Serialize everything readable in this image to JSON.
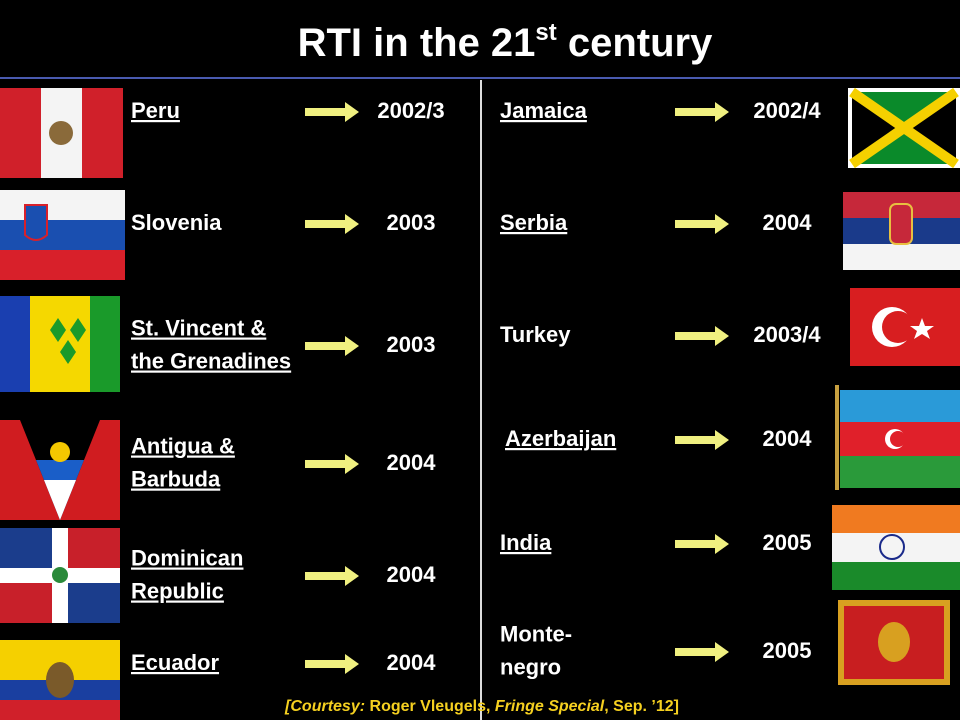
{
  "title": {
    "main": "RTI in the 21",
    "sup": "st",
    "rest": " century"
  },
  "left": [
    {
      "name": [
        "Peru"
      ],
      "year": "2002/3",
      "underline": true
    },
    {
      "name": [
        "Slovenia"
      ],
      "year": "2003",
      "underline": false
    },
    {
      "name": [
        "St. Vincent &",
        "the Grenadines"
      ],
      "year": "2003",
      "underline": true
    },
    {
      "name": [
        "Antigua &",
        "Barbuda"
      ],
      "year": "2004",
      "underline": true
    },
    {
      "name": [
        "Dominican",
        "Republic"
      ],
      "year": "2004",
      "underline": true
    },
    {
      "name": [
        "Ecuador"
      ],
      "year": "2004",
      "underline": true
    }
  ],
  "right": [
    {
      "name": [
        "Jamaica"
      ],
      "year": "2002/4",
      "underline": true
    },
    {
      "name": [
        "Serbia"
      ],
      "year": "2004",
      "underline": true
    },
    {
      "name": [
        "Turkey"
      ],
      "year": "2003/4",
      "underline": false
    },
    {
      "name": [
        "Azerbaijan"
      ],
      "year": "2004",
      "underline": true
    },
    {
      "name": [
        "India"
      ],
      "year": "2005",
      "underline": true
    },
    {
      "name": [
        "Monte-",
        "negro"
      ],
      "year": "2005",
      "underline": false
    }
  ],
  "footer": [
    "[Courtesy:",
    " Roger Vleugels, ",
    "Fringe Special",
    ", Sep. ’12]"
  ]
}
